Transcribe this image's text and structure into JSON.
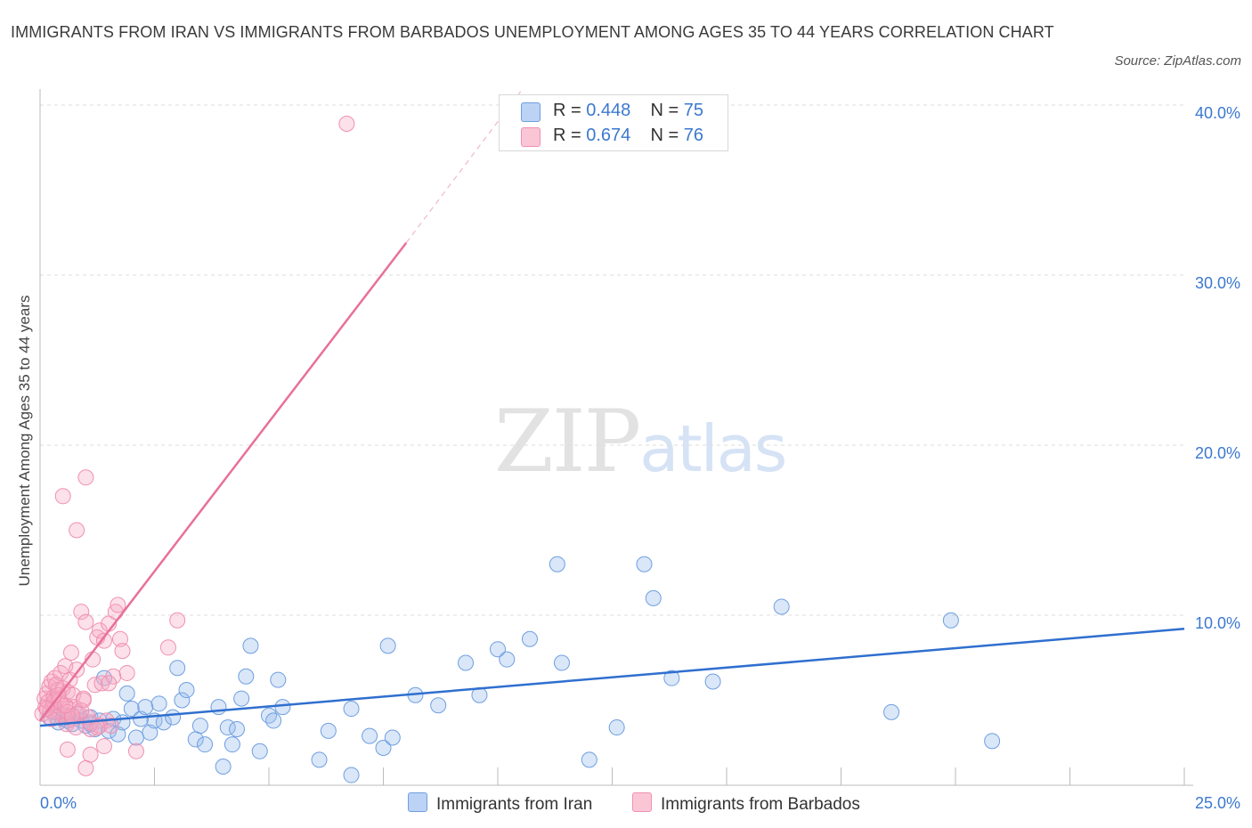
{
  "title": "IMMIGRANTS FROM IRAN VS IMMIGRANTS FROM BARBADOS UNEMPLOYMENT AMONG AGES 35 TO 44 YEARS CORRELATION CHART",
  "source": "Source: ZipAtlas.com",
  "watermark": {
    "zip": "ZIP",
    "atlas": "atlas"
  },
  "legend": {
    "iran": {
      "r_label": "R =",
      "r_value": "0.448",
      "n_label": "N =",
      "n_value": "75"
    },
    "barbados": {
      "r_label": "R =",
      "r_value": "0.674",
      "n_label": "N =",
      "n_value": "76"
    }
  },
  "colors": {
    "iran": "#6f9fe0",
    "iran_line": "#2f6fcf",
    "barbados": "#f090b0",
    "barbados_line": "#e8709a",
    "axis_text": "#3b78d0"
  },
  "chart_data": {
    "type": "scatter",
    "title": "IMMIGRANTS FROM IRAN VS IMMIGRANTS FROM BARBADOS UNEMPLOYMENT AMONG AGES 35 TO 44 YEARS CORRELATION CHART",
    "xlabel": "",
    "ylabel": "Unemployment Among Ages 35 to 44 years",
    "xlim": [
      0,
      25
    ],
    "ylim": [
      0,
      40
    ],
    "x_tick_labels": [
      "0.0%",
      "25.0%"
    ],
    "y_ticks": [
      10,
      20,
      30,
      40
    ],
    "y_tick_labels": [
      "10.0%",
      "20.0%",
      "30.0%",
      "40.0%"
    ],
    "series": [
      {
        "name": "Immigrants from Iran",
        "trend": {
          "x0": 0,
          "y0": 3.5,
          "x1": 25,
          "y1": 9.2
        },
        "points": [
          [
            0.2,
            4.0
          ],
          [
            0.3,
            4.3
          ],
          [
            0.4,
            3.7
          ],
          [
            0.5,
            3.9
          ],
          [
            0.6,
            4.1
          ],
          [
            0.7,
            3.6
          ],
          [
            0.8,
            4.2
          ],
          [
            0.9,
            3.8
          ],
          [
            1.0,
            3.5
          ],
          [
            1.1,
            4.0
          ],
          [
            1.2,
            3.3
          ],
          [
            1.3,
            3.8
          ],
          [
            1.4,
            6.3
          ],
          [
            1.5,
            3.2
          ],
          [
            1.6,
            3.9
          ],
          [
            1.7,
            3.0
          ],
          [
            1.8,
            3.7
          ],
          [
            1.9,
            5.4
          ],
          [
            2.0,
            4.5
          ],
          [
            2.1,
            2.8
          ],
          [
            2.2,
            3.9
          ],
          [
            2.3,
            4.6
          ],
          [
            2.4,
            3.1
          ],
          [
            2.5,
            3.8
          ],
          [
            2.6,
            4.8
          ],
          [
            2.7,
            3.7
          ],
          [
            2.9,
            4.0
          ],
          [
            3.0,
            6.9
          ],
          [
            3.1,
            5.0
          ],
          [
            3.2,
            5.6
          ],
          [
            3.4,
            2.7
          ],
          [
            3.5,
            3.5
          ],
          [
            3.6,
            2.4
          ],
          [
            3.9,
            4.6
          ],
          [
            4.0,
            1.1
          ],
          [
            4.1,
            3.4
          ],
          [
            4.2,
            2.4
          ],
          [
            4.3,
            3.3
          ],
          [
            4.4,
            5.1
          ],
          [
            4.5,
            6.4
          ],
          [
            4.6,
            8.2
          ],
          [
            4.8,
            2.0
          ],
          [
            5.0,
            4.1
          ],
          [
            5.1,
            3.8
          ],
          [
            5.2,
            6.2
          ],
          [
            5.3,
            4.6
          ],
          [
            6.1,
            1.5
          ],
          [
            6.3,
            3.2
          ],
          [
            6.8,
            4.5
          ],
          [
            6.8,
            0.6
          ],
          [
            7.2,
            2.9
          ],
          [
            7.5,
            2.2
          ],
          [
            7.6,
            8.2
          ],
          [
            7.7,
            2.8
          ],
          [
            8.2,
            5.3
          ],
          [
            8.7,
            4.7
          ],
          [
            9.3,
            7.2
          ],
          [
            9.6,
            5.3
          ],
          [
            10.0,
            8.0
          ],
          [
            10.2,
            7.4
          ],
          [
            10.7,
            8.6
          ],
          [
            11.3,
            13.0
          ],
          [
            11.4,
            7.2
          ],
          [
            12.0,
            1.5
          ],
          [
            12.6,
            3.4
          ],
          [
            13.2,
            13.0
          ],
          [
            13.4,
            11.0
          ],
          [
            13.8,
            6.3
          ],
          [
            14.7,
            6.1
          ],
          [
            16.2,
            10.5
          ],
          [
            18.6,
            4.3
          ],
          [
            19.9,
            9.7
          ],
          [
            20.8,
            2.6
          ],
          [
            0.6,
            3.8
          ],
          [
            1.1,
            3.6
          ]
        ]
      },
      {
        "name": "Immigrants from Barbados",
        "trend": {
          "x0": 0,
          "y0": 3.8,
          "x1": 8,
          "y1": 31.9
        },
        "trend_dashed": {
          "x0": 8,
          "y0": 31.9,
          "x1": 10.5,
          "y1": 40.8
        },
        "points": [
          [
            0.05,
            4.2
          ],
          [
            0.1,
            5.1
          ],
          [
            0.12,
            4.6
          ],
          [
            0.15,
            5.4
          ],
          [
            0.18,
            4.9
          ],
          [
            0.2,
            5.8
          ],
          [
            0.22,
            4.4
          ],
          [
            0.25,
            6.1
          ],
          [
            0.28,
            4.7
          ],
          [
            0.3,
            5.2
          ],
          [
            0.32,
            6.3
          ],
          [
            0.35,
            4.0
          ],
          [
            0.38,
            5.6
          ],
          [
            0.4,
            4.3
          ],
          [
            0.42,
            5.0
          ],
          [
            0.45,
            6.6
          ],
          [
            0.48,
            4.8
          ],
          [
            0.5,
            5.7
          ],
          [
            0.52,
            4.1
          ],
          [
            0.55,
            7.0
          ],
          [
            0.58,
            3.6
          ],
          [
            0.6,
            5.5
          ],
          [
            0.62,
            4.5
          ],
          [
            0.65,
            6.2
          ],
          [
            0.68,
            7.8
          ],
          [
            0.7,
            3.9
          ],
          [
            0.72,
            5.3
          ],
          [
            0.75,
            4.6
          ],
          [
            0.78,
            3.4
          ],
          [
            0.8,
            6.8
          ],
          [
            0.85,
            4.2
          ],
          [
            0.9,
            10.2
          ],
          [
            0.95,
            5.1
          ],
          [
            1.0,
            9.6
          ],
          [
            1.05,
            4.0
          ],
          [
            1.1,
            3.3
          ],
          [
            1.15,
            7.4
          ],
          [
            1.2,
            5.9
          ],
          [
            1.25,
            8.7
          ],
          [
            1.3,
            9.1
          ],
          [
            1.35,
            6.0
          ],
          [
            1.4,
            8.5
          ],
          [
            1.45,
            3.8
          ],
          [
            1.5,
            9.5
          ],
          [
            1.55,
            3.5
          ],
          [
            1.6,
            6.4
          ],
          [
            1.65,
            10.2
          ],
          [
            1.7,
            10.6
          ],
          [
            1.75,
            8.6
          ],
          [
            1.8,
            7.9
          ],
          [
            1.9,
            6.6
          ],
          [
            2.1,
            2.0
          ],
          [
            2.8,
            8.1
          ],
          [
            3.0,
            9.7
          ],
          [
            0.5,
            17.0
          ],
          [
            0.8,
            15.0
          ],
          [
            1.0,
            18.1
          ],
          [
            6.7,
            38.9
          ],
          [
            0.3,
            4.9
          ],
          [
            0.4,
            5.3
          ],
          [
            0.25,
            3.9
          ],
          [
            0.6,
            4.3
          ],
          [
            0.9,
            4.4
          ],
          [
            1.1,
            3.7
          ],
          [
            1.3,
            3.5
          ],
          [
            1.5,
            6.0
          ],
          [
            0.7,
            4.1
          ],
          [
            1.0,
            1.0
          ],
          [
            1.1,
            1.8
          ],
          [
            1.4,
            2.3
          ],
          [
            0.6,
            2.1
          ],
          [
            0.15,
            4.5
          ],
          [
            0.35,
            5.9
          ],
          [
            0.55,
            4.7
          ],
          [
            0.95,
            5.0
          ],
          [
            1.25,
            3.4
          ]
        ]
      }
    ]
  },
  "bottom_legend": {
    "iran": "Immigrants from Iran",
    "barbados": "Immigrants from Barbados"
  }
}
